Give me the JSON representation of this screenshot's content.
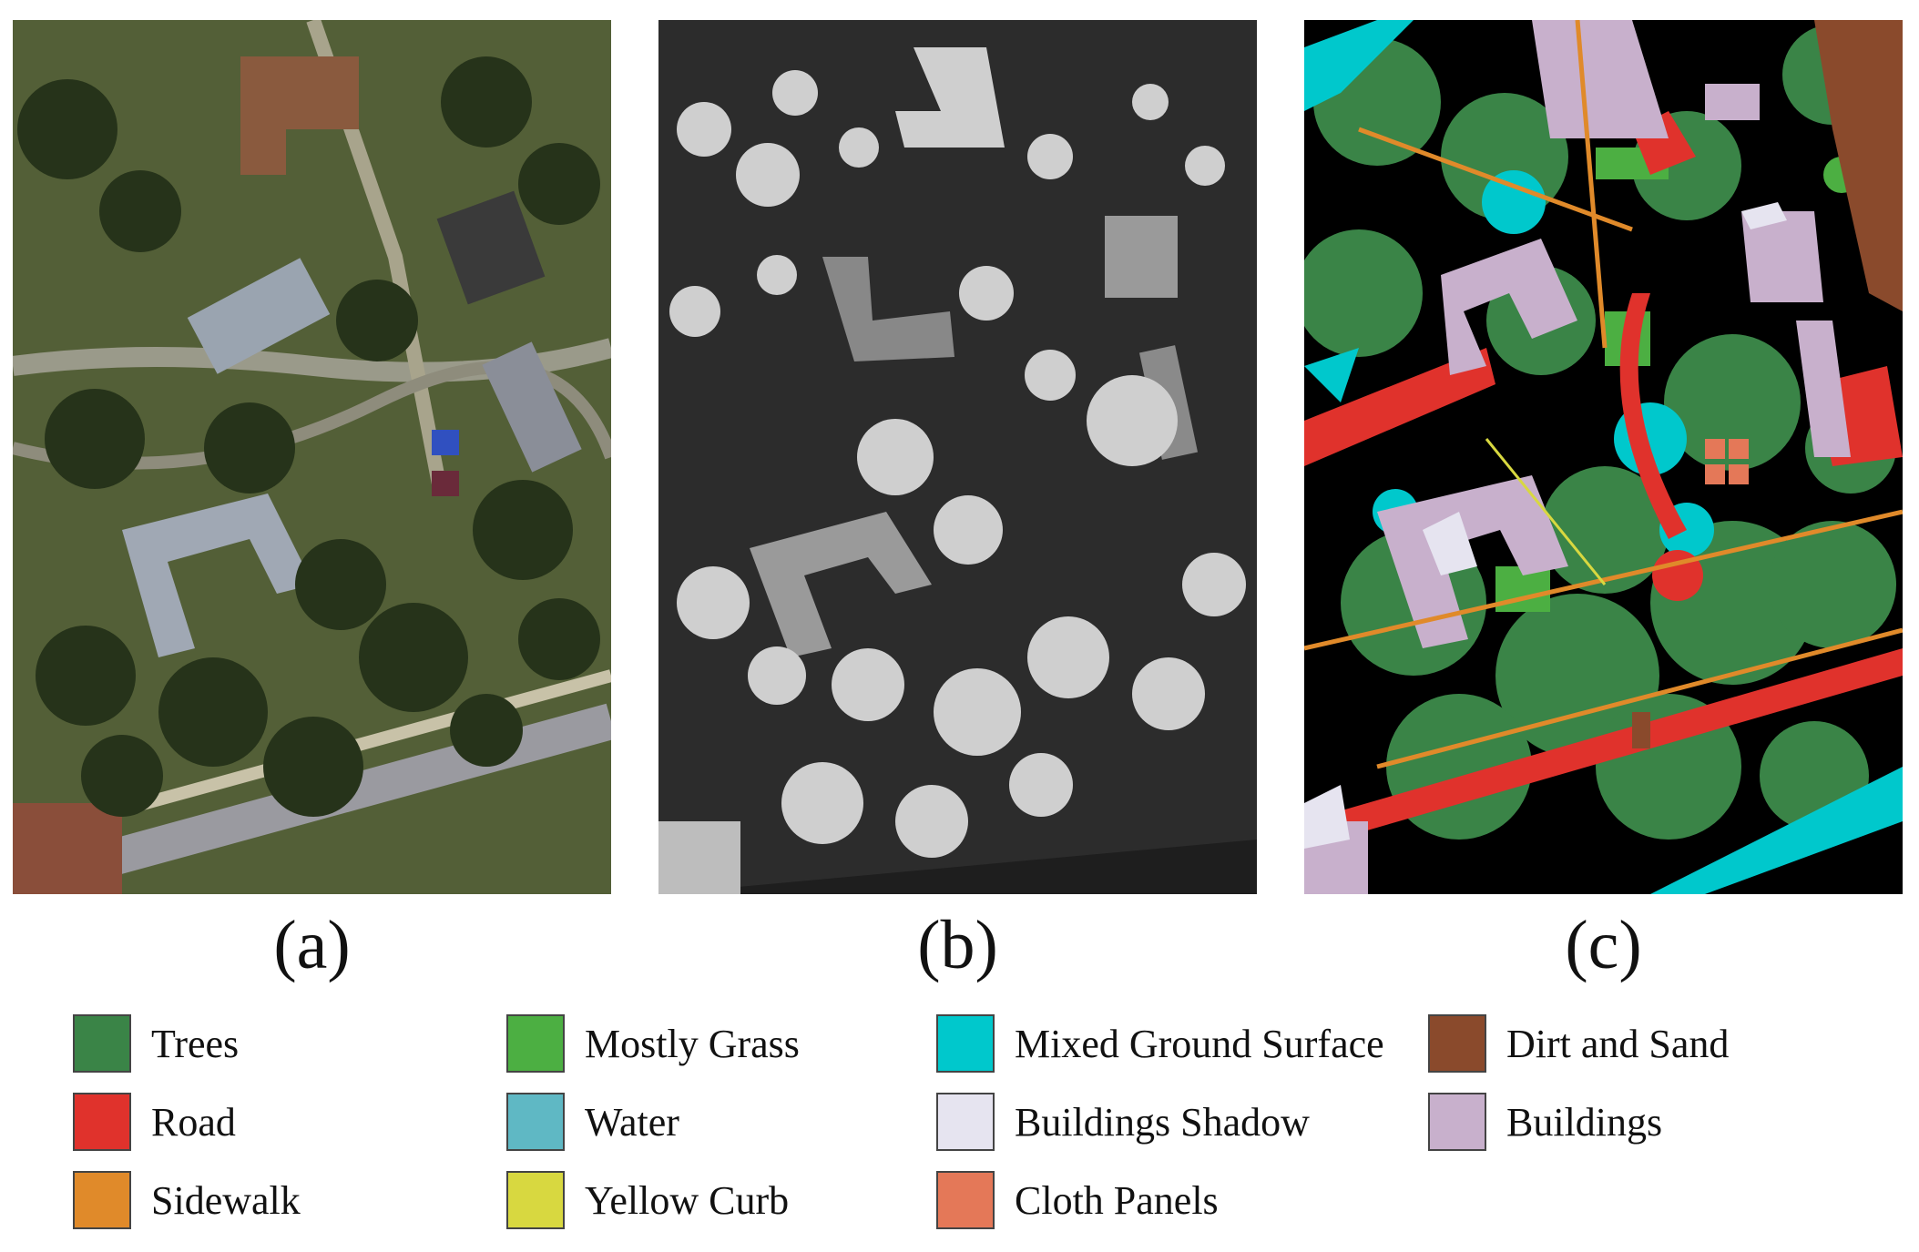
{
  "figure": {
    "panels": [
      {
        "id": "a",
        "caption": "(a)",
        "content": "RGB aerial image"
      },
      {
        "id": "b",
        "caption": "(b)",
        "content": "LiDAR elevation"
      },
      {
        "id": "c",
        "caption": "(c)",
        "content": "classification map"
      }
    ]
  },
  "legend": [
    {
      "label": "Trees",
      "color": "#3a8447"
    },
    {
      "label": "Mostly Grass",
      "color": "#4caf42"
    },
    {
      "label": "Mixed Ground Surface",
      "color": "#00c8cc"
    },
    {
      "label": "Dirt and Sand",
      "color": "#8a4a2c"
    },
    {
      "label": "Road",
      "color": "#e0322c"
    },
    {
      "label": "Water",
      "color": "#5fb8c4"
    },
    {
      "label": "Buildings Shadow",
      "color": "#e6e4f0"
    },
    {
      "label": "Buildings",
      "color": "#c8b0cc"
    },
    {
      "label": "Sidewalk",
      "color": "#e08a2a"
    },
    {
      "label": "Yellow Curb",
      "color": "#d8d840"
    },
    {
      "label": "Cloth Panels",
      "color": "#e47858"
    }
  ]
}
